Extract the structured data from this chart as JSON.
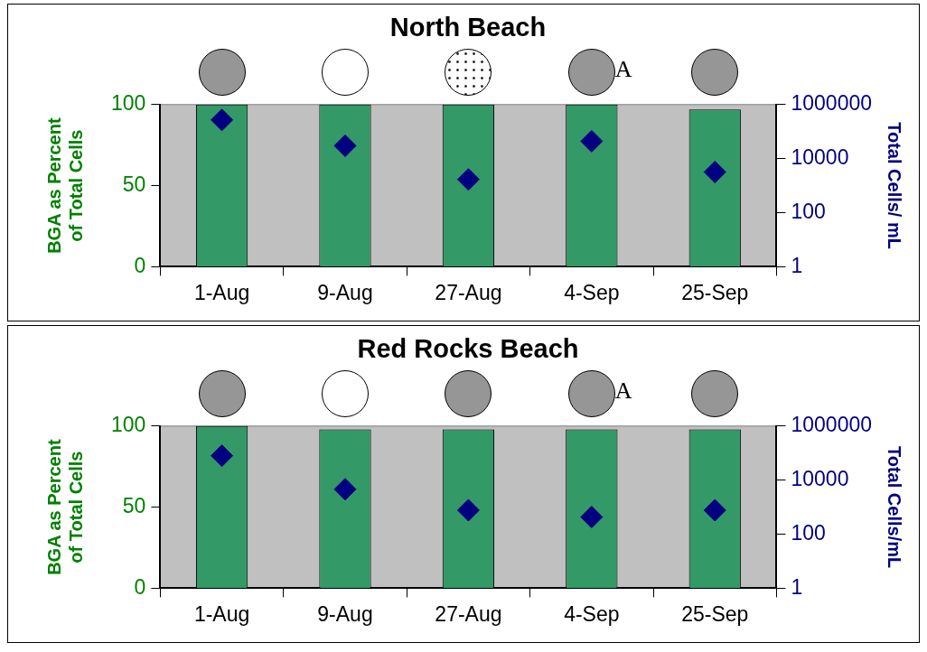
{
  "chart_data": [
    {
      "type": "bar",
      "title": "North Beach",
      "ylabel": "BGA as Percent of Total Cells",
      "y2label": "Total Cells/ mL",
      "categories": [
        "1-Aug",
        "9-Aug",
        "27-Aug",
        "4-Sep",
        "25-Sep"
      ],
      "series": [
        {
          "color": "#339966",
          "values": [
            100,
            100,
            100,
            100,
            97
          ]
        },
        {
          "type": "scatter",
          "axis": "y2",
          "color": "#000080",
          "values": [
            270000,
            30000,
            1700,
            44000,
            3200
          ]
        }
      ],
      "ylim": [
        0,
        100
      ],
      "yticks": [
        0,
        50,
        100
      ],
      "y2lim": [
        1,
        1000000
      ],
      "y2ticks": [
        1,
        100,
        10000,
        1000000
      ],
      "log": "y2",
      "grid": false,
      "legend": false,
      "marker": "diamond",
      "annotations": [
        "A"
      ]
    },
    {
      "type": "bar",
      "title": "Red Rocks Beach",
      "ylabel": "BGA as Percent of Total Cells",
      "y2label": "Total Cells/mL",
      "categories": [
        "1-Aug",
        "9-Aug",
        "27-Aug",
        "4-Sep",
        "25-Sep"
      ],
      "series": [
        {
          "color": "#339966",
          "values": [
            100,
            98,
            98,
            98,
            98
          ]
        },
        {
          "type": "scatter",
          "axis": "y2",
          "color": "#000080",
          "values": [
            80000,
            4600,
            770,
            430,
            770
          ]
        }
      ],
      "ylim": [
        0,
        100
      ],
      "yticks": [
        0,
        50,
        100
      ],
      "y2lim": [
        1,
        1000000
      ],
      "y2ticks": [
        1,
        100,
        10000,
        1000000
      ],
      "log": "y2",
      "grid": false,
      "legend": false,
      "marker": "diamond",
      "annotations": [
        "A"
      ]
    }
  ]
}
